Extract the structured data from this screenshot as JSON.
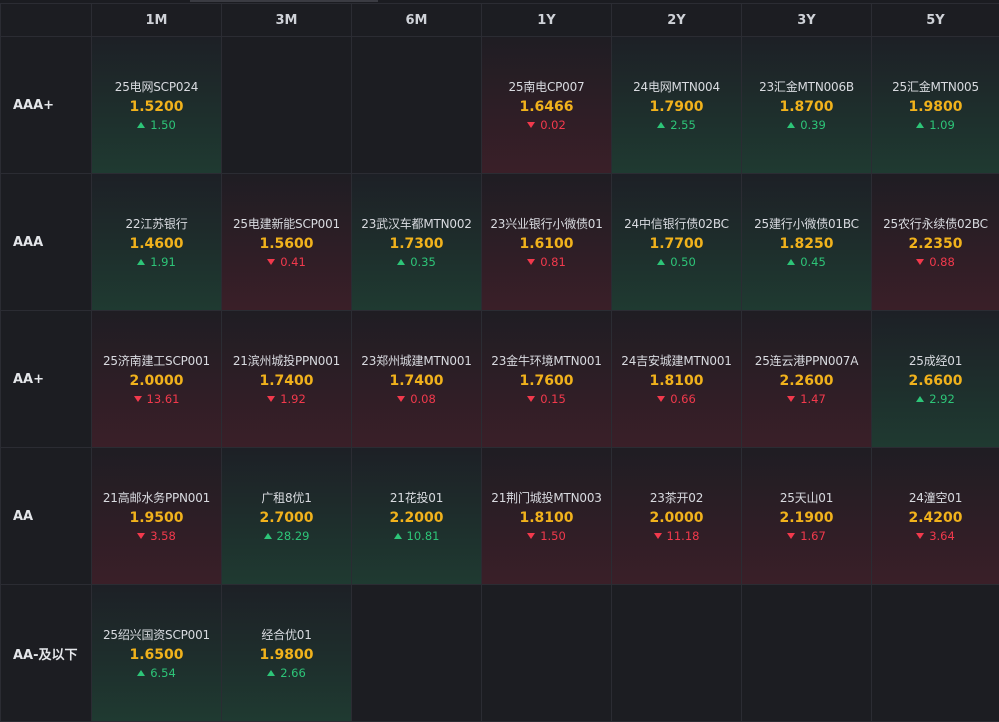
{
  "columns": [
    "",
    "1M",
    "3M",
    "6M",
    "1Y",
    "2Y",
    "3Y",
    "5Y"
  ],
  "rows": [
    {
      "label": "AAA+",
      "cells": [
        {
          "name": "25电网SCP024",
          "rate": "1.5200",
          "change": "1.50",
          "dir": "up"
        },
        null,
        null,
        {
          "name": "25南电CP007",
          "rate": "1.6466",
          "change": "0.02",
          "dir": "down"
        },
        {
          "name": "24电网MTN004",
          "rate": "1.7900",
          "change": "2.55",
          "dir": "up"
        },
        {
          "name": "23汇金MTN006B",
          "rate": "1.8700",
          "change": "0.39",
          "dir": "up"
        },
        {
          "name": "25汇金MTN005",
          "rate": "1.9800",
          "change": "1.09",
          "dir": "up"
        }
      ]
    },
    {
      "label": "AAA",
      "cells": [
        {
          "name": "22江苏银行",
          "rate": "1.4600",
          "change": "1.91",
          "dir": "up"
        },
        {
          "name": "25电建新能SCP001",
          "rate": "1.5600",
          "change": "0.41",
          "dir": "down"
        },
        {
          "name": "23武汉车都MTN002",
          "rate": "1.7300",
          "change": "0.35",
          "dir": "up"
        },
        {
          "name": "23兴业银行小微债01",
          "rate": "1.6100",
          "change": "0.81",
          "dir": "down"
        },
        {
          "name": "24中信银行债02BC",
          "rate": "1.7700",
          "change": "0.50",
          "dir": "up"
        },
        {
          "name": "25建行小微债01BC",
          "rate": "1.8250",
          "change": "0.45",
          "dir": "up"
        },
        {
          "name": "25农行永续债02BC",
          "rate": "2.2350",
          "change": "0.88",
          "dir": "down"
        }
      ]
    },
    {
      "label": "AA+",
      "cells": [
        {
          "name": "25济南建工SCP001",
          "rate": "2.0000",
          "change": "13.61",
          "dir": "down"
        },
        {
          "name": "21滨州城投PPN001",
          "rate": "1.7400",
          "change": "1.92",
          "dir": "down"
        },
        {
          "name": "23郑州城建MTN001",
          "rate": "1.7400",
          "change": "0.08",
          "dir": "down"
        },
        {
          "name": "23金牛环境MTN001",
          "rate": "1.7600",
          "change": "0.15",
          "dir": "down"
        },
        {
          "name": "24吉安城建MTN001",
          "rate": "1.8100",
          "change": "0.66",
          "dir": "down"
        },
        {
          "name": "25连云港PPN007A",
          "rate": "2.2600",
          "change": "1.47",
          "dir": "down"
        },
        {
          "name": "25成经01",
          "rate": "2.6600",
          "change": "2.92",
          "dir": "up"
        }
      ]
    },
    {
      "label": "AA",
      "cells": [
        {
          "name": "21高邮水务PPN001",
          "rate": "1.9500",
          "change": "3.58",
          "dir": "down"
        },
        {
          "name": "广租8优1",
          "rate": "2.7000",
          "change": "28.29",
          "dir": "up"
        },
        {
          "name": "21花投01",
          "rate": "2.2000",
          "change": "10.81",
          "dir": "up"
        },
        {
          "name": "21荆门城投MTN003",
          "rate": "1.8100",
          "change": "1.50",
          "dir": "down"
        },
        {
          "name": "23茶开02",
          "rate": "2.0000",
          "change": "11.18",
          "dir": "down"
        },
        {
          "name": "25天山01",
          "rate": "2.1900",
          "change": "1.67",
          "dir": "down"
        },
        {
          "name": "24潼空01",
          "rate": "2.4200",
          "change": "3.64",
          "dir": "down"
        }
      ]
    },
    {
      "label": "AA-及以下",
      "cells": [
        {
          "name": "25绍兴国资SCP001",
          "rate": "1.6500",
          "change": "6.54",
          "dir": "up"
        },
        {
          "name": "经合优01",
          "rate": "1.9800",
          "change": "2.66",
          "dir": "up"
        },
        null,
        null,
        null,
        null,
        null
      ]
    }
  ],
  "colors": {
    "up": "#2dc578",
    "down": "#f2394c",
    "rate": "#f1b21c"
  },
  "icons": {
    "up": "triangle-up-icon",
    "down": "triangle-down-icon"
  }
}
